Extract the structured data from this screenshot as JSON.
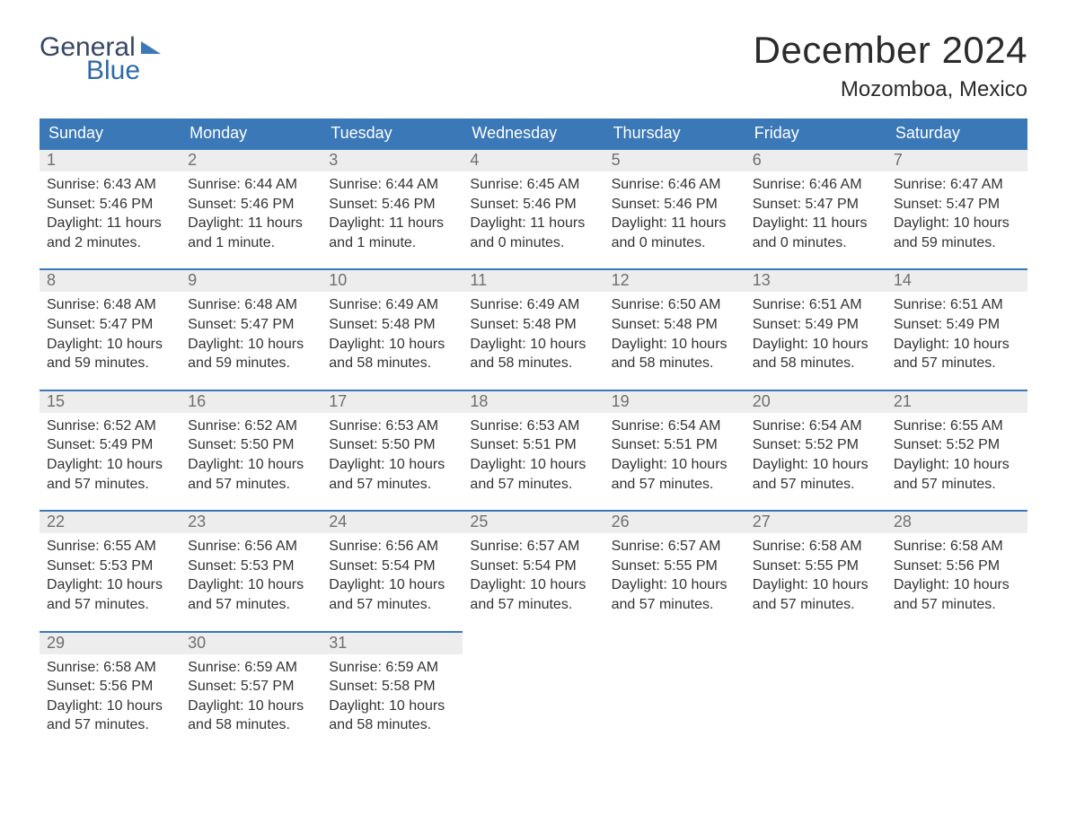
{
  "brand": {
    "word1": "General",
    "word2": "Blue",
    "accent": "#3b78b8"
  },
  "title": "December 2024",
  "location": "Mozomboa, Mexico",
  "weekday_headers": [
    "Sunday",
    "Monday",
    "Tuesday",
    "Wednesday",
    "Thursday",
    "Friday",
    "Saturday"
  ],
  "colors": {
    "header_bg": "#3b78b8",
    "header_text": "#ffffff",
    "daynum_bg": "#ededed",
    "daynum_text": "#6f6f6f",
    "row_divider": "#3b78b8",
    "body_text": "#333333",
    "background": "#ffffff"
  },
  "typography": {
    "month_fontsize": 42,
    "location_fontsize": 24,
    "header_fontsize": 18,
    "daynum_fontsize": 18,
    "details_fontsize": 16
  },
  "days": [
    {
      "n": 1,
      "sunrise": "6:43 AM",
      "sunset": "5:46 PM",
      "daylight": "11 hours and 2 minutes."
    },
    {
      "n": 2,
      "sunrise": "6:44 AM",
      "sunset": "5:46 PM",
      "daylight": "11 hours and 1 minute."
    },
    {
      "n": 3,
      "sunrise": "6:44 AM",
      "sunset": "5:46 PM",
      "daylight": "11 hours and 1 minute."
    },
    {
      "n": 4,
      "sunrise": "6:45 AM",
      "sunset": "5:46 PM",
      "daylight": "11 hours and 0 minutes."
    },
    {
      "n": 5,
      "sunrise": "6:46 AM",
      "sunset": "5:46 PM",
      "daylight": "11 hours and 0 minutes."
    },
    {
      "n": 6,
      "sunrise": "6:46 AM",
      "sunset": "5:47 PM",
      "daylight": "11 hours and 0 minutes."
    },
    {
      "n": 7,
      "sunrise": "6:47 AM",
      "sunset": "5:47 PM",
      "daylight": "10 hours and 59 minutes."
    },
    {
      "n": 8,
      "sunrise": "6:48 AM",
      "sunset": "5:47 PM",
      "daylight": "10 hours and 59 minutes."
    },
    {
      "n": 9,
      "sunrise": "6:48 AM",
      "sunset": "5:47 PM",
      "daylight": "10 hours and 59 minutes."
    },
    {
      "n": 10,
      "sunrise": "6:49 AM",
      "sunset": "5:48 PM",
      "daylight": "10 hours and 58 minutes."
    },
    {
      "n": 11,
      "sunrise": "6:49 AM",
      "sunset": "5:48 PM",
      "daylight": "10 hours and 58 minutes."
    },
    {
      "n": 12,
      "sunrise": "6:50 AM",
      "sunset": "5:48 PM",
      "daylight": "10 hours and 58 minutes."
    },
    {
      "n": 13,
      "sunrise": "6:51 AM",
      "sunset": "5:49 PM",
      "daylight": "10 hours and 58 minutes."
    },
    {
      "n": 14,
      "sunrise": "6:51 AM",
      "sunset": "5:49 PM",
      "daylight": "10 hours and 57 minutes."
    },
    {
      "n": 15,
      "sunrise": "6:52 AM",
      "sunset": "5:49 PM",
      "daylight": "10 hours and 57 minutes."
    },
    {
      "n": 16,
      "sunrise": "6:52 AM",
      "sunset": "5:50 PM",
      "daylight": "10 hours and 57 minutes."
    },
    {
      "n": 17,
      "sunrise": "6:53 AM",
      "sunset": "5:50 PM",
      "daylight": "10 hours and 57 minutes."
    },
    {
      "n": 18,
      "sunrise": "6:53 AM",
      "sunset": "5:51 PM",
      "daylight": "10 hours and 57 minutes."
    },
    {
      "n": 19,
      "sunrise": "6:54 AM",
      "sunset": "5:51 PM",
      "daylight": "10 hours and 57 minutes."
    },
    {
      "n": 20,
      "sunrise": "6:54 AM",
      "sunset": "5:52 PM",
      "daylight": "10 hours and 57 minutes."
    },
    {
      "n": 21,
      "sunrise": "6:55 AM",
      "sunset": "5:52 PM",
      "daylight": "10 hours and 57 minutes."
    },
    {
      "n": 22,
      "sunrise": "6:55 AM",
      "sunset": "5:53 PM",
      "daylight": "10 hours and 57 minutes."
    },
    {
      "n": 23,
      "sunrise": "6:56 AM",
      "sunset": "5:53 PM",
      "daylight": "10 hours and 57 minutes."
    },
    {
      "n": 24,
      "sunrise": "6:56 AM",
      "sunset": "5:54 PM",
      "daylight": "10 hours and 57 minutes."
    },
    {
      "n": 25,
      "sunrise": "6:57 AM",
      "sunset": "5:54 PM",
      "daylight": "10 hours and 57 minutes."
    },
    {
      "n": 26,
      "sunrise": "6:57 AM",
      "sunset": "5:55 PM",
      "daylight": "10 hours and 57 minutes."
    },
    {
      "n": 27,
      "sunrise": "6:58 AM",
      "sunset": "5:55 PM",
      "daylight": "10 hours and 57 minutes."
    },
    {
      "n": 28,
      "sunrise": "6:58 AM",
      "sunset": "5:56 PM",
      "daylight": "10 hours and 57 minutes."
    },
    {
      "n": 29,
      "sunrise": "6:58 AM",
      "sunset": "5:56 PM",
      "daylight": "10 hours and 57 minutes."
    },
    {
      "n": 30,
      "sunrise": "6:59 AM",
      "sunset": "5:57 PM",
      "daylight": "10 hours and 58 minutes."
    },
    {
      "n": 31,
      "sunrise": "6:59 AM",
      "sunset": "5:58 PM",
      "daylight": "10 hours and 58 minutes."
    }
  ],
  "labels": {
    "sunrise": "Sunrise:",
    "sunset": "Sunset:",
    "daylight": "Daylight:"
  },
  "layout": {
    "start_weekday_index": 0,
    "columns": 7
  }
}
